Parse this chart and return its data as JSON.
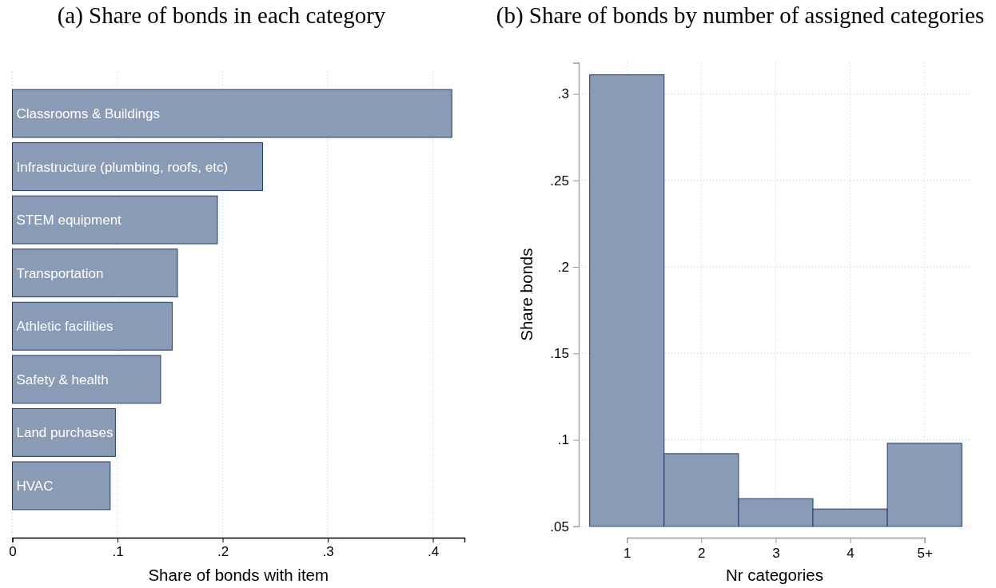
{
  "chart_data": [
    {
      "type": "bar",
      "orientation": "horizontal",
      "title": "(a) Share of bonds in each category",
      "xlabel": "Share of bonds with item",
      "categories": [
        "Classrooms & Buildings",
        "Infrastructure (plumbing, roofs, etc)",
        "STEM equipment",
        "Transportation",
        "Athletic facilities",
        "Safety & health",
        "Land purchases",
        "HVAC"
      ],
      "values": [
        0.418,
        0.238,
        0.195,
        0.157,
        0.152,
        0.141,
        0.098,
        0.093
      ],
      "color": "#8a9cb5",
      "xlim": [
        0,
        0.43
      ],
      "xticks": [
        0,
        {
          "value": 0.1,
          "label": ".1"
        },
        {
          "value": 0.2,
          "label": ".2"
        },
        {
          "value": 0.3,
          "label": ".3"
        },
        {
          "value": 0.4,
          "label": ".4"
        }
      ],
      "grid": "x"
    },
    {
      "type": "bar",
      "title": "(b) Share of bonds by number of assigned categories",
      "xlabel": "Nr categories",
      "ylabel": "Share bonds",
      "categories": [
        "1",
        "2",
        "3",
        "4",
        "5+"
      ],
      "values": [
        0.311,
        0.092,
        0.066,
        0.06,
        0.098
      ],
      "color": "#8a9cb5",
      "ylim": [
        0.05,
        0.318
      ],
      "yticks": [
        {
          "value": 0.05,
          "label": ".05"
        },
        {
          "value": 0.1,
          "label": ".1"
        },
        {
          "value": 0.15,
          "label": ".15"
        },
        {
          "value": 0.2,
          "label": ".2"
        },
        {
          "value": 0.25,
          "label": ".25"
        },
        {
          "value": 0.3,
          "label": ".3"
        }
      ],
      "grid": true
    }
  ]
}
